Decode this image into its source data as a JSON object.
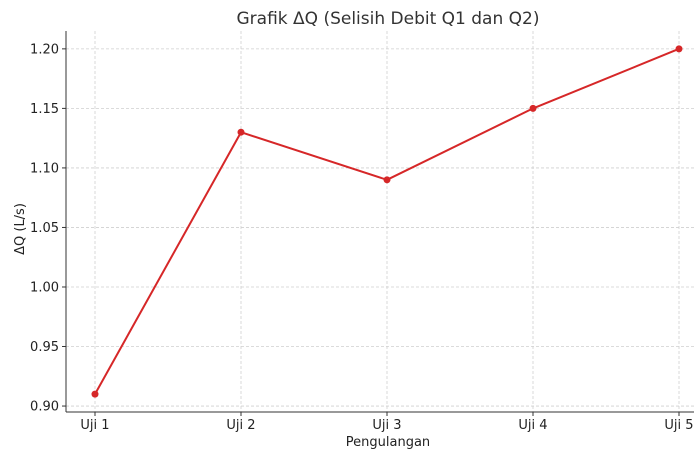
{
  "chart_data": {
    "type": "line",
    "title": "Grafik ΔQ (Selisih Debit Q1 dan Q2)",
    "xlabel": "Pengulangan",
    "ylabel": "ΔQ (L/s)",
    "categories": [
      "Uji 1",
      "Uji 2",
      "Uji 3",
      "Uji 4",
      "Uji 5"
    ],
    "series": [
      {
        "values": [
          0.91,
          1.13,
          1.09,
          1.15,
          1.2
        ],
        "color": "#d62728",
        "marker": "circle"
      }
    ],
    "ylim": [
      0.895,
      1.215
    ],
    "yticks": [
      "0.90",
      "0.95",
      "1.00",
      "1.05",
      "1.10",
      "1.15",
      "1.20"
    ],
    "grid": true,
    "legend": "none"
  }
}
